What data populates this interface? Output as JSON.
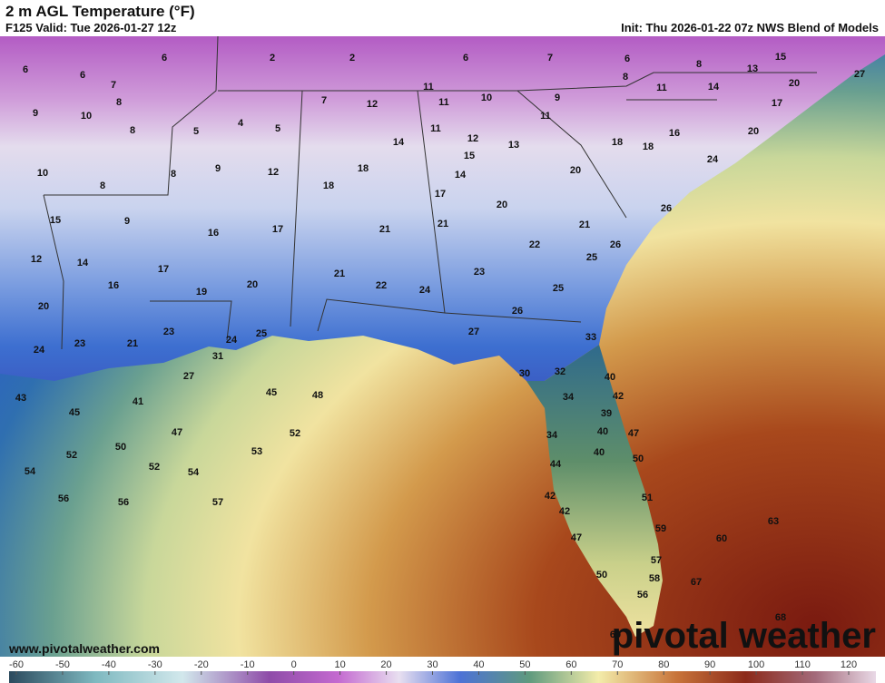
{
  "header": {
    "title": "2 m AGL Temperature (°F)",
    "valid": "F125 Valid: Tue 2026-01-27 12z",
    "init": "Init: Thu 2026-01-22 07z NWS Blend of Models"
  },
  "map": {
    "labels": [
      6,
      6,
      6,
      2,
      2,
      6,
      7,
      6,
      8,
      13,
      15,
      20,
      27,
      7,
      8,
      9,
      10,
      4,
      5,
      7,
      12,
      11,
      11,
      10,
      9,
      8,
      11,
      14,
      17,
      8,
      5,
      11,
      12,
      13,
      11,
      16,
      20,
      14,
      18,
      18,
      10,
      8,
      9,
      8,
      12,
      18,
      15,
      14,
      20,
      24,
      18,
      17,
      15,
      9,
      16,
      17,
      21,
      21,
      20,
      21,
      26,
      26,
      12,
      14,
      17,
      22,
      25,
      23,
      16,
      19,
      20,
      21,
      22,
      24,
      25,
      20,
      26,
      23,
      25,
      24,
      27,
      33,
      24,
      23,
      21,
      31,
      30,
      32,
      40,
      27,
      34,
      42,
      39,
      43,
      41,
      45,
      48,
      45,
      47,
      52,
      40,
      47,
      34,
      50,
      53,
      52,
      40,
      50,
      54,
      52,
      54,
      44,
      56,
      56,
      57,
      42,
      51,
      42,
      63,
      59,
      60,
      47,
      57,
      50,
      58,
      67,
      56,
      68,
      60
    ]
  },
  "footer": {
    "website": "www.pivotalweather.com",
    "logo": "pivotal weather"
  },
  "colorbar": {
    "ticks": [
      -60,
      -50,
      -40,
      -30,
      -20,
      -10,
      0,
      10,
      20,
      30,
      40,
      50,
      60,
      70,
      80,
      90,
      100,
      110,
      120
    ]
  }
}
